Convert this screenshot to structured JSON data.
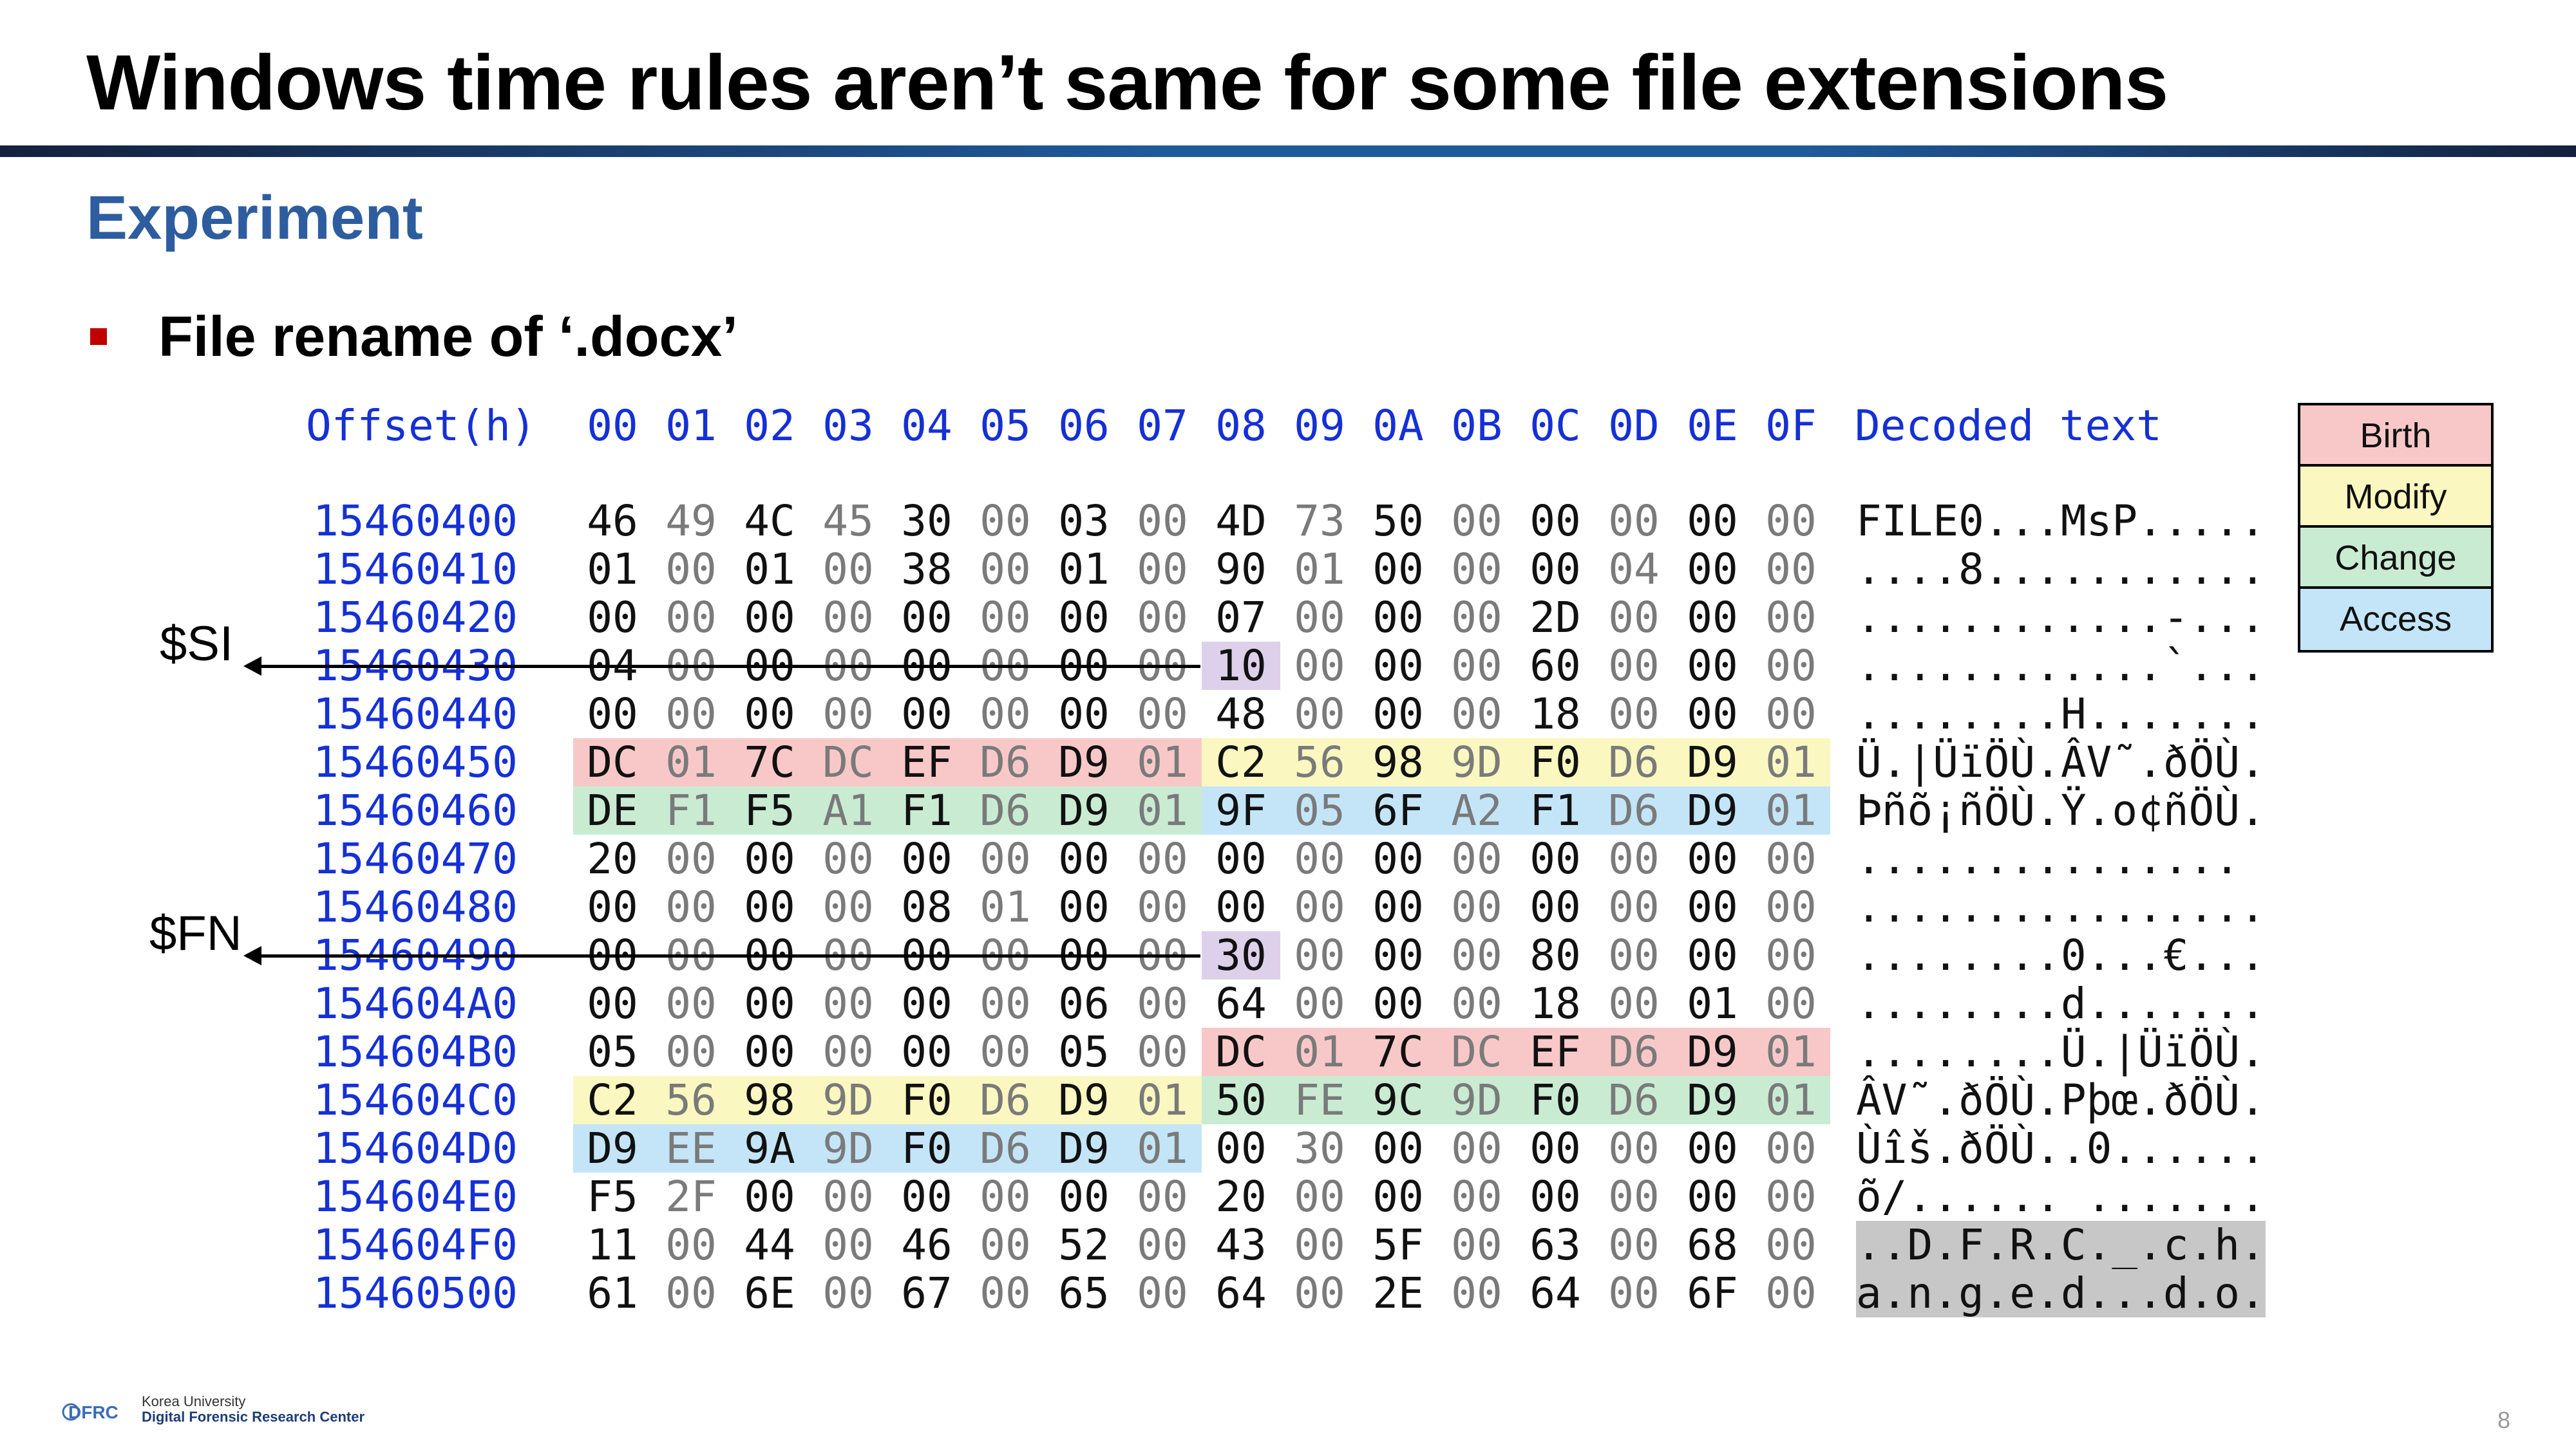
{
  "title": "Windows time rules aren’t same for some file extensions",
  "section": "Experiment",
  "bullet": "File rename of ‘.docx’",
  "hex": {
    "header_offset": "Offset(h)",
    "header_cols": [
      "00",
      "01",
      "02",
      "03",
      "04",
      "05",
      "06",
      "07",
      "08",
      "09",
      "0A",
      "0B",
      "0C",
      "0D",
      "0E",
      "0F"
    ],
    "header_decoded": "Decoded text",
    "rows": [
      {
        "offset": "15460400",
        "bytes": [
          "46",
          "49",
          "4C",
          "45",
          "30",
          "00",
          "03",
          "00",
          "4D",
          "73",
          "50",
          "00",
          "00",
          "00",
          "00",
          "00"
        ],
        "decoded": "FILE0...MsP....."
      },
      {
        "offset": "15460410",
        "bytes": [
          "01",
          "00",
          "01",
          "00",
          "38",
          "00",
          "01",
          "00",
          "90",
          "01",
          "00",
          "00",
          "00",
          "04",
          "00",
          "00"
        ],
        "decoded": "....8..........."
      },
      {
        "offset": "15460420",
        "bytes": [
          "00",
          "00",
          "00",
          "00",
          "00",
          "00",
          "00",
          "00",
          "07",
          "00",
          "00",
          "00",
          "2D",
          "00",
          "00",
          "00"
        ],
        "decoded": "............-..."
      },
      {
        "offset": "15460430",
        "bytes": [
          "04",
          "00",
          "00",
          "00",
          "00",
          "00",
          "00",
          "00",
          "10",
          "00",
          "00",
          "00",
          "60",
          "00",
          "00",
          "00"
        ],
        "decoded": "............`..."
      },
      {
        "offset": "15460440",
        "bytes": [
          "00",
          "00",
          "00",
          "00",
          "00",
          "00",
          "00",
          "00",
          "48",
          "00",
          "00",
          "00",
          "18",
          "00",
          "00",
          "00"
        ],
        "decoded": "........H......."
      },
      {
        "offset": "15460450",
        "bytes": [
          "DC",
          "01",
          "7C",
          "DC",
          "EF",
          "D6",
          "D9",
          "01",
          "C2",
          "56",
          "98",
          "9D",
          "F0",
          "D6",
          "D9",
          "01"
        ],
        "decoded": "Ü.|ÜïÖÙ.ÂV˜.ðÖÙ."
      },
      {
        "offset": "15460460",
        "bytes": [
          "DE",
          "F1",
          "F5",
          "A1",
          "F1",
          "D6",
          "D9",
          "01",
          "9F",
          "05",
          "6F",
          "A2",
          "F1",
          "D6",
          "D9",
          "01"
        ],
        "decoded": "Þñõ¡ñÖÙ.Ÿ.o¢ñÖÙ."
      },
      {
        "offset": "15460470",
        "bytes": [
          "20",
          "00",
          "00",
          "00",
          "00",
          "00",
          "00",
          "00",
          "00",
          "00",
          "00",
          "00",
          "00",
          "00",
          "00",
          "00"
        ],
        "decoded": " ..............."
      },
      {
        "offset": "15460480",
        "bytes": [
          "00",
          "00",
          "00",
          "00",
          "08",
          "01",
          "00",
          "00",
          "00",
          "00",
          "00",
          "00",
          "00",
          "00",
          "00",
          "00"
        ],
        "decoded": "................"
      },
      {
        "offset": "15460490",
        "bytes": [
          "00",
          "00",
          "00",
          "00",
          "00",
          "00",
          "00",
          "00",
          "30",
          "00",
          "00",
          "00",
          "80",
          "00",
          "00",
          "00"
        ],
        "decoded": "........0...€..."
      },
      {
        "offset": "154604A0",
        "bytes": [
          "00",
          "00",
          "00",
          "00",
          "00",
          "00",
          "06",
          "00",
          "64",
          "00",
          "00",
          "00",
          "18",
          "00",
          "01",
          "00"
        ],
        "decoded": "........d......."
      },
      {
        "offset": "154604B0",
        "bytes": [
          "05",
          "00",
          "00",
          "00",
          "00",
          "00",
          "05",
          "00",
          "DC",
          "01",
          "7C",
          "DC",
          "EF",
          "D6",
          "D9",
          "01"
        ],
        "decoded": "........Ü.|ÜïÖÙ."
      },
      {
        "offset": "154604C0",
        "bytes": [
          "C2",
          "56",
          "98",
          "9D",
          "F0",
          "D6",
          "D9",
          "01",
          "50",
          "FE",
          "9C",
          "9D",
          "F0",
          "D6",
          "D9",
          "01"
        ],
        "decoded": "ÂV˜.ðÖÙ.Pþœ.ðÖÙ."
      },
      {
        "offset": "154604D0",
        "bytes": [
          "D9",
          "EE",
          "9A",
          "9D",
          "F0",
          "D6",
          "D9",
          "01",
          "00",
          "30",
          "00",
          "00",
          "00",
          "00",
          "00",
          "00"
        ],
        "decoded": "Ùîš.ðÖÙ..0......"
      },
      {
        "offset": "154604E0",
        "bytes": [
          "F5",
          "2F",
          "00",
          "00",
          "00",
          "00",
          "00",
          "00",
          "20",
          "00",
          "00",
          "00",
          "00",
          "00",
          "00",
          "00"
        ],
        "decoded": "õ/...... ......."
      },
      {
        "offset": "154604F0",
        "bytes": [
          "11",
          "00",
          "44",
          "00",
          "46",
          "00",
          "52",
          "00",
          "43",
          "00",
          "5F",
          "00",
          "63",
          "00",
          "68",
          "00"
        ],
        "decoded": "..D.F.R.C._.c.h."
      },
      {
        "offset": "15460500",
        "bytes": [
          "61",
          "00",
          "6E",
          "00",
          "67",
          "00",
          "65",
          "00",
          "64",
          "00",
          "2E",
          "00",
          "64",
          "00",
          "6F",
          "00"
        ],
        "decoded": "a.n.g.e.d...d.o."
      }
    ]
  },
  "annotations": {
    "si": "$SI",
    "fn": "$FN"
  },
  "legend": [
    {
      "label": "Birth",
      "color": "#f8c8c8"
    },
    {
      "label": "Modify",
      "color": "#fbf7c0"
    },
    {
      "label": "Change",
      "color": "#c9ebd2"
    },
    {
      "label": "Access",
      "color": "#c4e5f7"
    }
  ],
  "colors": {
    "birth": "#f8c8c8",
    "modify": "#fbf7c0",
    "change": "#c9ebd2",
    "access": "#c4e5f7",
    "highlight": "#ddd0ea",
    "title_accent": "#2e5d9f",
    "bullet": "#c00000"
  },
  "footer": {
    "logo": "DFRC",
    "org_line1": "Korea University",
    "org_line2": "Digital Forensic Research Center",
    "page_number": "8"
  }
}
